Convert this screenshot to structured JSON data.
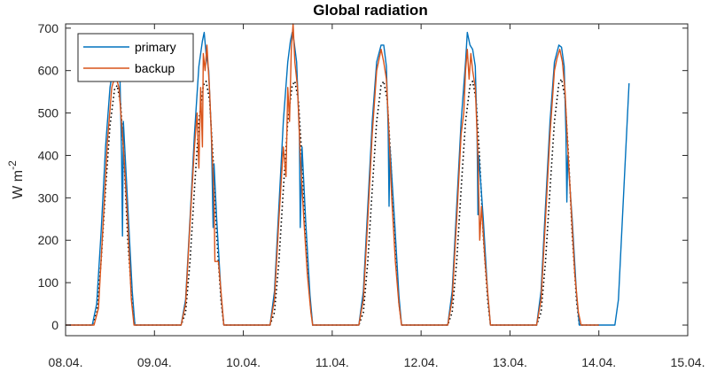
{
  "chart_data": {
    "type": "line",
    "title": "Global radiation",
    "ylabel_main": "W m",
    "ylabel_exp": "-2",
    "xlabel": "",
    "x_domain": [
      8.0,
      15.0
    ],
    "ylim": [
      -25,
      710
    ],
    "x_ticks": [
      {
        "x": 8.0,
        "label": "08.04."
      },
      {
        "x": 9.0,
        "label": "09.04."
      },
      {
        "x": 10.0,
        "label": "10.04."
      },
      {
        "x": 11.0,
        "label": "11.04."
      },
      {
        "x": 12.0,
        "label": "12.04."
      },
      {
        "x": 13.0,
        "label": "13.04."
      },
      {
        "x": 14.0,
        "label": "14.04."
      },
      {
        "x": 15.0,
        "label": "15.04."
      }
    ],
    "y_ticks": [
      {
        "y": 0,
        "label": "0"
      },
      {
        "y": 100,
        "label": "100"
      },
      {
        "y": 200,
        "label": "200"
      },
      {
        "y": 300,
        "label": "300"
      },
      {
        "y": 400,
        "label": "400"
      },
      {
        "y": 500,
        "label": "500"
      },
      {
        "y": 600,
        "label": "600"
      },
      {
        "y": 700,
        "label": "700"
      }
    ],
    "grid": false,
    "legend_position": "top-left",
    "series": [
      {
        "name": "primary",
        "color": "#0072BD",
        "style": "solid",
        "points": [
          [
            8.0,
            0
          ],
          [
            8.3,
            0
          ],
          [
            8.35,
            50
          ],
          [
            8.4,
            220
          ],
          [
            8.45,
            420
          ],
          [
            8.5,
            560
          ],
          [
            8.55,
            625
          ],
          [
            8.58,
            640
          ],
          [
            8.61,
            600
          ],
          [
            8.63,
            400
          ],
          [
            8.64,
            210
          ],
          [
            8.65,
            480
          ],
          [
            8.7,
            280
          ],
          [
            8.75,
            80
          ],
          [
            8.78,
            0
          ],
          [
            9.3,
            0
          ],
          [
            9.35,
            60
          ],
          [
            9.4,
            250
          ],
          [
            9.45,
            450
          ],
          [
            9.5,
            610
          ],
          [
            9.54,
            670
          ],
          [
            9.56,
            690
          ],
          [
            9.58,
            640
          ],
          [
            9.61,
            600
          ],
          [
            9.64,
            450
          ],
          [
            9.66,
            230
          ],
          [
            9.67,
            380
          ],
          [
            9.7,
            250
          ],
          [
            9.75,
            70
          ],
          [
            9.78,
            0
          ],
          [
            10.3,
            0
          ],
          [
            10.35,
            80
          ],
          [
            10.4,
            280
          ],
          [
            10.45,
            480
          ],
          [
            10.5,
            620
          ],
          [
            10.53,
            670
          ],
          [
            10.55,
            690
          ],
          [
            10.57,
            670
          ],
          [
            10.6,
            620
          ],
          [
            10.63,
            450
          ],
          [
            10.64,
            230
          ],
          [
            10.66,
            420
          ],
          [
            10.7,
            250
          ],
          [
            10.75,
            70
          ],
          [
            10.78,
            0
          ],
          [
            11.3,
            0
          ],
          [
            11.35,
            80
          ],
          [
            11.4,
            280
          ],
          [
            11.45,
            480
          ],
          [
            11.5,
            620
          ],
          [
            11.55,
            660
          ],
          [
            11.58,
            660
          ],
          [
            11.61,
            610
          ],
          [
            11.63,
            460
          ],
          [
            11.64,
            280
          ],
          [
            11.65,
            420
          ],
          [
            11.7,
            250
          ],
          [
            11.75,
            70
          ],
          [
            11.78,
            0
          ],
          [
            12.3,
            0
          ],
          [
            12.35,
            80
          ],
          [
            12.4,
            280
          ],
          [
            12.45,
            480
          ],
          [
            12.5,
            620
          ],
          [
            12.52,
            690
          ],
          [
            12.55,
            660
          ],
          [
            12.58,
            650
          ],
          [
            12.61,
            610
          ],
          [
            12.63,
            450
          ],
          [
            12.64,
            260
          ],
          [
            12.65,
            400
          ],
          [
            12.7,
            250
          ],
          [
            12.75,
            70
          ],
          [
            12.78,
            0
          ],
          [
            13.3,
            0
          ],
          [
            13.35,
            80
          ],
          [
            13.4,
            280
          ],
          [
            13.45,
            480
          ],
          [
            13.5,
            620
          ],
          [
            13.55,
            660
          ],
          [
            13.58,
            655
          ],
          [
            13.61,
            610
          ],
          [
            13.63,
            450
          ],
          [
            13.64,
            290
          ],
          [
            13.65,
            400
          ],
          [
            13.7,
            250
          ],
          [
            13.75,
            70
          ],
          [
            13.78,
            0
          ],
          [
            14.0,
            0
          ],
          [
            14.18,
            0
          ],
          [
            14.22,
            60
          ],
          [
            14.26,
            230
          ],
          [
            14.3,
            400
          ],
          [
            14.34,
            570
          ]
        ]
      },
      {
        "name": "backup",
        "color": "#D95319",
        "style": "solid",
        "points": [
          [
            8.0,
            0
          ],
          [
            8.32,
            0
          ],
          [
            8.37,
            40
          ],
          [
            8.42,
            230
          ],
          [
            8.47,
            430
          ],
          [
            8.52,
            560
          ],
          [
            8.56,
            590
          ],
          [
            8.6,
            560
          ],
          [
            8.65,
            420
          ],
          [
            8.7,
            240
          ],
          [
            8.74,
            60
          ],
          [
            8.77,
            0
          ],
          [
            9.3,
            0
          ],
          [
            9.35,
            50
          ],
          [
            9.4,
            240
          ],
          [
            9.45,
            420
          ],
          [
            9.48,
            500
          ],
          [
            9.5,
            370
          ],
          [
            9.52,
            560
          ],
          [
            9.54,
            420
          ],
          [
            9.55,
            640
          ],
          [
            9.57,
            600
          ],
          [
            9.59,
            660
          ],
          [
            9.62,
            550
          ],
          [
            9.65,
            400
          ],
          [
            9.67,
            300
          ],
          [
            9.68,
            150
          ],
          [
            9.72,
            150
          ],
          [
            9.76,
            50
          ],
          [
            9.78,
            0
          ],
          [
            10.3,
            0
          ],
          [
            10.35,
            60
          ],
          [
            10.4,
            250
          ],
          [
            10.45,
            420
          ],
          [
            10.48,
            350
          ],
          [
            10.5,
            560
          ],
          [
            10.52,
            480
          ],
          [
            10.54,
            650
          ],
          [
            10.56,
            710
          ],
          [
            10.58,
            620
          ],
          [
            10.61,
            560
          ],
          [
            10.64,
            400
          ],
          [
            10.68,
            250
          ],
          [
            10.72,
            120
          ],
          [
            10.76,
            30
          ],
          [
            10.78,
            0
          ],
          [
            11.3,
            0
          ],
          [
            11.35,
            60
          ],
          [
            11.4,
            250
          ],
          [
            11.45,
            450
          ],
          [
            11.5,
            600
          ],
          [
            11.53,
            630
          ],
          [
            11.55,
            650
          ],
          [
            11.58,
            620
          ],
          [
            11.61,
            580
          ],
          [
            11.64,
            450
          ],
          [
            11.67,
            300
          ],
          [
            11.71,
            150
          ],
          [
            11.75,
            50
          ],
          [
            11.78,
            0
          ],
          [
            12.3,
            0
          ],
          [
            12.35,
            60
          ],
          [
            12.4,
            250
          ],
          [
            12.45,
            450
          ],
          [
            12.48,
            500
          ],
          [
            12.5,
            600
          ],
          [
            12.52,
            650
          ],
          [
            12.54,
            580
          ],
          [
            12.56,
            640
          ],
          [
            12.58,
            600
          ],
          [
            12.61,
            560
          ],
          [
            12.64,
            400
          ],
          [
            12.66,
            200
          ],
          [
            12.68,
            280
          ],
          [
            12.72,
            150
          ],
          [
            12.76,
            50
          ],
          [
            12.78,
            0
          ],
          [
            13.3,
            0
          ],
          [
            13.35,
            60
          ],
          [
            13.4,
            250
          ],
          [
            13.45,
            450
          ],
          [
            13.5,
            600
          ],
          [
            13.53,
            630
          ],
          [
            13.56,
            650
          ],
          [
            13.59,
            620
          ],
          [
            13.62,
            550
          ],
          [
            13.65,
            420
          ],
          [
            13.69,
            270
          ],
          [
            13.73,
            120
          ],
          [
            13.77,
            30
          ],
          [
            13.8,
            0
          ],
          [
            14.0,
            0
          ]
        ]
      },
      {
        "name": "",
        "color": "#000000",
        "style": "dotted",
        "points": [
          [
            8.0,
            0
          ],
          [
            8.3,
            0
          ],
          [
            8.35,
            30
          ],
          [
            8.4,
            150
          ],
          [
            8.45,
            320
          ],
          [
            8.5,
            470
          ],
          [
            8.55,
            555
          ],
          [
            8.58,
            565
          ],
          [
            8.62,
            520
          ],
          [
            8.66,
            380
          ],
          [
            8.7,
            200
          ],
          [
            8.75,
            50
          ],
          [
            8.78,
            0
          ],
          [
            9.3,
            0
          ],
          [
            9.35,
            30
          ],
          [
            9.4,
            150
          ],
          [
            9.45,
            320
          ],
          [
            9.5,
            480
          ],
          [
            9.55,
            565
          ],
          [
            9.58,
            575
          ],
          [
            9.62,
            530
          ],
          [
            9.66,
            390
          ],
          [
            9.7,
            210
          ],
          [
            9.75,
            55
          ],
          [
            9.78,
            0
          ],
          [
            10.3,
            0
          ],
          [
            10.35,
            30
          ],
          [
            10.4,
            150
          ],
          [
            10.45,
            320
          ],
          [
            10.5,
            480
          ],
          [
            10.55,
            565
          ],
          [
            10.58,
            575
          ],
          [
            10.62,
            530
          ],
          [
            10.66,
            390
          ],
          [
            10.7,
            210
          ],
          [
            10.75,
            55
          ],
          [
            10.78,
            0
          ],
          [
            11.3,
            0
          ],
          [
            11.35,
            30
          ],
          [
            11.4,
            150
          ],
          [
            11.45,
            320
          ],
          [
            11.5,
            480
          ],
          [
            11.55,
            565
          ],
          [
            11.58,
            575
          ],
          [
            11.62,
            530
          ],
          [
            11.66,
            390
          ],
          [
            11.7,
            210
          ],
          [
            11.75,
            55
          ],
          [
            11.78,
            0
          ],
          [
            12.3,
            0
          ],
          [
            12.35,
            30
          ],
          [
            12.4,
            150
          ],
          [
            12.45,
            320
          ],
          [
            12.5,
            480
          ],
          [
            12.55,
            565
          ],
          [
            12.58,
            575
          ],
          [
            12.62,
            530
          ],
          [
            12.66,
            390
          ],
          [
            12.7,
            210
          ],
          [
            12.75,
            55
          ],
          [
            12.78,
            0
          ],
          [
            13.3,
            0
          ],
          [
            13.35,
            30
          ],
          [
            13.4,
            150
          ],
          [
            13.45,
            320
          ],
          [
            13.5,
            480
          ],
          [
            13.55,
            570
          ],
          [
            13.58,
            580
          ],
          [
            13.62,
            535
          ],
          [
            13.66,
            395
          ],
          [
            13.7,
            215
          ],
          [
            13.75,
            55
          ],
          [
            13.78,
            0
          ],
          [
            14.0,
            0
          ]
        ]
      }
    ]
  }
}
